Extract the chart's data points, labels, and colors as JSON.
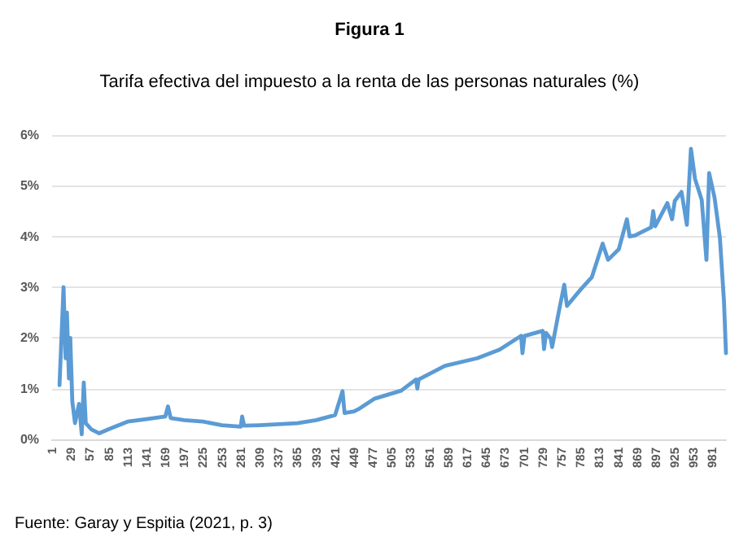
{
  "chart_data": {
    "type": "line",
    "title": "Figura 1",
    "subtitle": "Tarifa efectiva del impuesto a la renta de las personas naturales (%)",
    "annotations": [
      "Fuente: Garay y Espitia (2021, p. 3)"
    ],
    "x": [
      12,
      18,
      21,
      23,
      26,
      28,
      31,
      35,
      41,
      45,
      48,
      51,
      59,
      71,
      85,
      113,
      141,
      169,
      173,
      177,
      197,
      225,
      253,
      281,
      283,
      286,
      309,
      337,
      365,
      393,
      421,
      432,
      435,
      449,
      455,
      479,
      519,
      541,
      543,
      545,
      584,
      632,
      665,
      697,
      699,
      702,
      729,
      731,
      734,
      741,
      743,
      753,
      761,
      765,
      785,
      802,
      818,
      826,
      842,
      854,
      858,
      866,
      890,
      893,
      896,
      914,
      921,
      925,
      935,
      943,
      949,
      955,
      965,
      972,
      976,
      984,
      992,
      998,
      1001
    ],
    "series": [
      {
        "color": "#5b9bd5",
        "values": [
          1.07,
          3.0,
          1.6,
          2.5,
          1.2,
          2.0,
          0.75,
          0.32,
          0.7,
          0.1,
          1.12,
          0.32,
          0.2,
          0.12,
          0.2,
          0.35,
          0.4,
          0.45,
          0.65,
          0.42,
          0.38,
          0.35,
          0.28,
          0.25,
          0.45,
          0.27,
          0.28,
          0.3,
          0.32,
          0.38,
          0.48,
          0.95,
          0.52,
          0.55,
          0.59,
          0.8,
          0.96,
          1.18,
          1.0,
          1.18,
          1.45,
          1.6,
          1.77,
          2.04,
          1.7,
          2.04,
          2.14,
          1.78,
          2.1,
          1.98,
          1.82,
          2.52,
          3.05,
          2.63,
          2.95,
          3.2,
          3.86,
          3.54,
          3.75,
          4.34,
          4.0,
          4.02,
          4.18,
          4.5,
          4.2,
          4.66,
          4.34,
          4.7,
          4.88,
          4.23,
          5.73,
          5.14,
          4.72,
          3.54,
          5.25,
          4.77,
          3.97,
          2.73,
          1.7
        ]
      }
    ],
    "xlim": [
      1,
      1001
    ],
    "xticks": [
      1,
      29,
      57,
      85,
      113,
      141,
      169,
      197,
      225,
      253,
      281,
      309,
      337,
      365,
      393,
      421,
      449,
      477,
      505,
      533,
      561,
      589,
      617,
      645,
      673,
      701,
      729,
      757,
      785,
      813,
      841,
      869,
      897,
      925,
      953,
      981
    ],
    "ylim": [
      0,
      6
    ],
    "yticks": [
      {
        "value": 0,
        "label": "0%"
      },
      {
        "value": 1,
        "label": "1%"
      },
      {
        "value": 2,
        "label": "2%"
      },
      {
        "value": 3,
        "label": "3%"
      },
      {
        "value": 4,
        "label": "4%"
      },
      {
        "value": 5,
        "label": "5%"
      },
      {
        "value": 6,
        "label": "6%"
      }
    ],
    "grid": "y",
    "marker": "none",
    "line_style": "solid"
  }
}
